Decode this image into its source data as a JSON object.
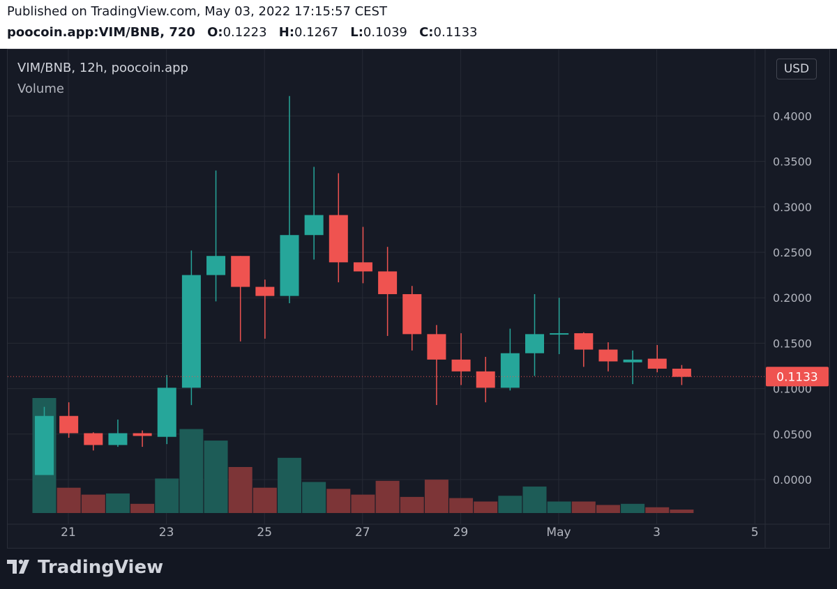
{
  "header": {
    "published": "Published on TradingView.com, May 03, 2022 17:15:57 CEST",
    "symbol_line": "poocoin.app:VIM/BNB, 720",
    "ohlc": [
      {
        "label": "O:",
        "value": "0.1223"
      },
      {
        "label": "H:",
        "value": "0.1267"
      },
      {
        "label": "L:",
        "value": "0.1039"
      },
      {
        "label": "C:",
        "value": "0.1133"
      }
    ]
  },
  "legend": {
    "title": "VIM/BNB, 12h, poocoin.app",
    "volume": "Volume"
  },
  "currency_button": "USD",
  "price_label": "0.1133",
  "brand": "TradingView",
  "colors": {
    "up": "#26a69a",
    "down": "#ef5350",
    "up_volume": "#1d5c57",
    "down_volume": "#7d3537",
    "background": "#161a25",
    "grid": "#262a35"
  },
  "chart_data": {
    "type": "candlestick",
    "x_tick_labels": [
      "21",
      "23",
      "25",
      "27",
      "29",
      "May",
      "3",
      "5"
    ],
    "y_tick_labels": [
      "0.4000",
      "0.3500",
      "0.3000",
      "0.2500",
      "0.2000",
      "0.1500",
      "0.1000",
      "0.0500",
      "0.0000"
    ],
    "ylim": [
      -0.035,
      0.46
    ],
    "last_price": 0.1133,
    "grid": true,
    "candles": [
      {
        "o": 0.005,
        "h": 0.08,
        "l": 0.005,
        "c": 0.07,
        "v": 1.0
      },
      {
        "o": 0.07,
        "h": 0.085,
        "l": 0.046,
        "c": 0.051,
        "v": 0.22
      },
      {
        "o": 0.051,
        "h": 0.052,
        "l": 0.032,
        "c": 0.038,
        "v": 0.16
      },
      {
        "o": 0.038,
        "h": 0.066,
        "l": 0.036,
        "c": 0.051,
        "v": 0.17
      },
      {
        "o": 0.051,
        "h": 0.054,
        "l": 0.036,
        "c": 0.048,
        "v": 0.08
      },
      {
        "o": 0.047,
        "h": 0.115,
        "l": 0.039,
        "c": 0.101,
        "v": 0.3
      },
      {
        "o": 0.101,
        "h": 0.252,
        "l": 0.082,
        "c": 0.225,
        "v": 0.73
      },
      {
        "o": 0.225,
        "h": 0.34,
        "l": 0.196,
        "c": 0.246,
        "v": 0.63
      },
      {
        "o": 0.246,
        "h": 0.246,
        "l": 0.152,
        "c": 0.212,
        "v": 0.4
      },
      {
        "o": 0.212,
        "h": 0.22,
        "l": 0.155,
        "c": 0.202,
        "v": 0.22
      },
      {
        "o": 0.202,
        "h": 0.422,
        "l": 0.194,
        "c": 0.269,
        "v": 0.48
      },
      {
        "o": 0.269,
        "h": 0.344,
        "l": 0.242,
        "c": 0.291,
        "v": 0.27
      },
      {
        "o": 0.291,
        "h": 0.337,
        "l": 0.217,
        "c": 0.239,
        "v": 0.21
      },
      {
        "o": 0.239,
        "h": 0.278,
        "l": 0.216,
        "c": 0.229,
        "v": 0.16
      },
      {
        "o": 0.229,
        "h": 0.256,
        "l": 0.158,
        "c": 0.204,
        "v": 0.28
      },
      {
        "o": 0.204,
        "h": 0.213,
        "l": 0.142,
        "c": 0.16,
        "v": 0.14
      },
      {
        "o": 0.16,
        "h": 0.17,
        "l": 0.082,
        "c": 0.132,
        "v": 0.29
      },
      {
        "o": 0.132,
        "h": 0.161,
        "l": 0.104,
        "c": 0.119,
        "v": 0.13
      },
      {
        "o": 0.119,
        "h": 0.135,
        "l": 0.085,
        "c": 0.101,
        "v": 0.1
      },
      {
        "o": 0.101,
        "h": 0.166,
        "l": 0.098,
        "c": 0.139,
        "v": 0.15
      },
      {
        "o": 0.139,
        "h": 0.204,
        "l": 0.114,
        "c": 0.16,
        "v": 0.23
      },
      {
        "o": 0.16,
        "h": 0.2,
        "l": 0.138,
        "c": 0.161,
        "v": 0.1
      },
      {
        "o": 0.161,
        "h": 0.162,
        "l": 0.124,
        "c": 0.143,
        "v": 0.1
      },
      {
        "o": 0.143,
        "h": 0.151,
        "l": 0.119,
        "c": 0.13,
        "v": 0.07
      },
      {
        "o": 0.129,
        "h": 0.142,
        "l": 0.105,
        "c": 0.132,
        "v": 0.08
      },
      {
        "o": 0.133,
        "h": 0.148,
        "l": 0.118,
        "c": 0.122,
        "v": 0.05
      },
      {
        "o": 0.122,
        "h": 0.126,
        "l": 0.104,
        "c": 0.113,
        "v": 0.03
      }
    ]
  }
}
